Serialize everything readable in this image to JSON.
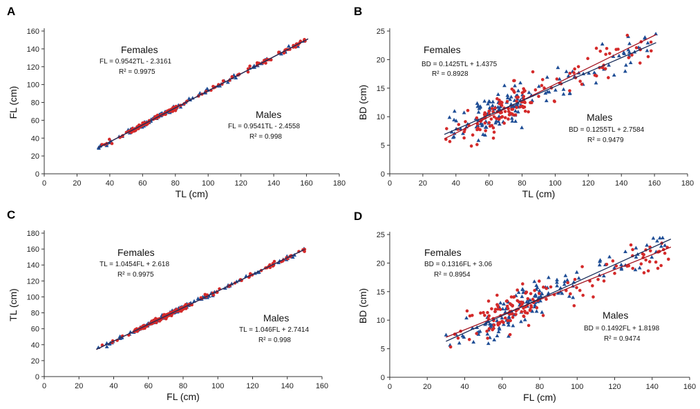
{
  "chart_data": [
    {
      "panel": "A",
      "type": "scatter",
      "xlabel": "TL (cm)",
      "ylabel": "FL (cm)",
      "xlim": [
        0,
        180
      ],
      "ylim": [
        0,
        160
      ],
      "xticks": [
        0,
        20,
        40,
        60,
        80,
        100,
        120,
        140,
        160,
        180
      ],
      "yticks": [
        0,
        20,
        40,
        60,
        80,
        100,
        120,
        140,
        160
      ],
      "x_range": [
        33,
        161
      ],
      "scatter": 1.2,
      "series": [
        {
          "name": "Females",
          "color": "#d42a2a",
          "marker": "circle",
          "slope": 0.9542,
          "intercept": -2.3161,
          "equation": "FL = 0.9542TL - 2.3161",
          "r2": "R² = 0.9975"
        },
        {
          "name": "Males",
          "color": "#1f4e96",
          "marker": "triangle",
          "slope": 0.9541,
          "intercept": -2.4558,
          "equation": "FL = 0.9541TL - 2.4558",
          "r2": "R² = 0.998"
        }
      ]
    },
    {
      "panel": "B",
      "type": "scatter",
      "xlabel": "TL (cm)",
      "ylabel": "BD (cm)",
      "xlim": [
        0,
        180
      ],
      "ylim": [
        0,
        25
      ],
      "xticks": [
        0,
        20,
        40,
        60,
        80,
        100,
        120,
        140,
        160,
        180
      ],
      "yticks": [
        0,
        5,
        10,
        15,
        20,
        25
      ],
      "x_range": [
        33,
        161
      ],
      "scatter": 1.6,
      "series": [
        {
          "name": "Females",
          "color": "#d42a2a",
          "marker": "circle",
          "slope": 0.1425,
          "intercept": 1.4375,
          "equation": "BD = 0.1425TL + 1.4375",
          "r2": "R² = 0.8928"
        },
        {
          "name": "Males",
          "color": "#1f4e96",
          "marker": "triangle",
          "slope": 0.1255,
          "intercept": 2.7584,
          "equation": "BD = 0.1255TL + 2.7584",
          "r2": "R² = 0.9479"
        }
      ]
    },
    {
      "panel": "C",
      "type": "scatter",
      "xlabel": "FL (cm)",
      "ylabel": "TL (cm)",
      "xlim": [
        0,
        160
      ],
      "ylim": [
        0,
        180
      ],
      "xticks": [
        0,
        20,
        40,
        60,
        80,
        100,
        120,
        140,
        160
      ],
      "yticks": [
        0,
        20,
        40,
        60,
        80,
        100,
        120,
        140,
        160,
        180
      ],
      "x_range": [
        30,
        150
      ],
      "scatter": 1.4,
      "series": [
        {
          "name": "Females",
          "color": "#d42a2a",
          "marker": "circle",
          "slope": 1.0454,
          "intercept": 2.618,
          "equation": "TL = 1.0454FL + 2.618",
          "r2": "R² = 0.9975"
        },
        {
          "name": "Males",
          "color": "#1f4e96",
          "marker": "triangle",
          "slope": 1.046,
          "intercept": 2.7414,
          "equation": "TL = 1.046FL + 2.7414",
          "r2": "R² = 0.998"
        }
      ]
    },
    {
      "panel": "D",
      "type": "scatter",
      "xlabel": "FL (cm)",
      "ylabel": "BD (cm)",
      "xlim": [
        0,
        160
      ],
      "ylim": [
        0,
        25
      ],
      "xticks": [
        0,
        20,
        40,
        60,
        80,
        100,
        120,
        140,
        160
      ],
      "yticks": [
        0,
        5,
        10,
        15,
        20,
        25
      ],
      "x_range": [
        30,
        150
      ],
      "scatter": 1.6,
      "series": [
        {
          "name": "Females",
          "color": "#d42a2a",
          "marker": "circle",
          "slope": 0.1316,
          "intercept": 3.06,
          "equation": "BD = 0.1316FL + 3.06",
          "r2": "R² = 0.8954"
        },
        {
          "name": "Males",
          "color": "#1f4e96",
          "marker": "triangle",
          "slope": 0.1492,
          "intercept": 1.8198,
          "equation": "BD = 0.1492FL + 1.8198",
          "r2": "R² = 0.9474"
        }
      ]
    }
  ]
}
